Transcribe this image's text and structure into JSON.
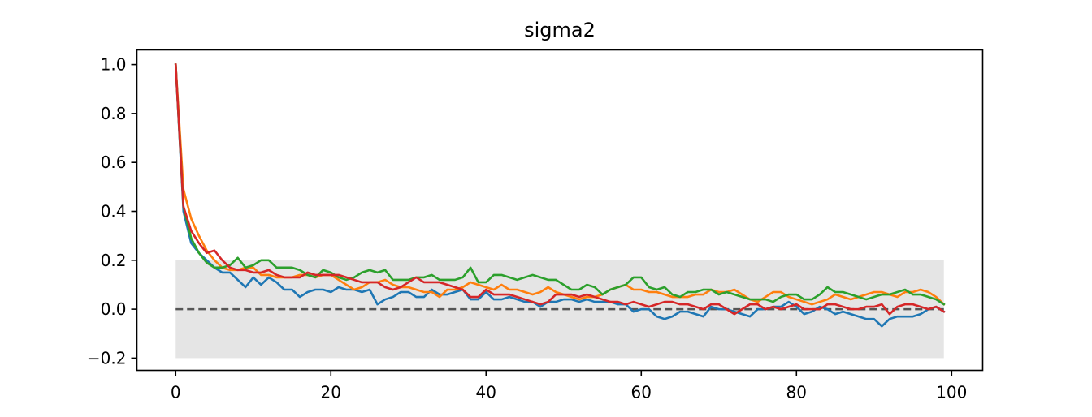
{
  "chart_data": {
    "type": "line",
    "title": "sigma2",
    "xlabel": "",
    "ylabel": "",
    "xlim": [
      -5,
      104
    ],
    "ylim": [
      -0.25,
      1.06
    ],
    "x_ticks": [
      0,
      20,
      40,
      60,
      80,
      100
    ],
    "x_tick_labels": [
      "0",
      "20",
      "40",
      "60",
      "80",
      "100"
    ],
    "y_ticks": [
      -0.2,
      0.0,
      0.2,
      0.4,
      0.6,
      0.8,
      1.0
    ],
    "y_tick_labels": [
      "−0.2",
      "0.0",
      "0.2",
      "0.4",
      "0.6",
      "0.8",
      "1.0"
    ],
    "grid": false,
    "band": {
      "x_start": 0,
      "x_end": 99,
      "y_low": -0.2,
      "y_high": 0.2,
      "color": "#e5e5e5"
    },
    "reference_line": {
      "y": 0.0,
      "style": "dashed",
      "color": "#555555"
    },
    "x": [
      0,
      1,
      2,
      3,
      4,
      5,
      6,
      7,
      8,
      9,
      10,
      11,
      12,
      13,
      14,
      15,
      16,
      17,
      18,
      19,
      20,
      21,
      22,
      23,
      24,
      25,
      26,
      27,
      28,
      29,
      30,
      31,
      32,
      33,
      34,
      35,
      36,
      37,
      38,
      39,
      40,
      41,
      42,
      43,
      44,
      45,
      46,
      47,
      48,
      49,
      50,
      51,
      52,
      53,
      54,
      55,
      56,
      57,
      58,
      59,
      60,
      61,
      62,
      63,
      64,
      65,
      66,
      67,
      68,
      69,
      70,
      71,
      72,
      73,
      74,
      75,
      76,
      77,
      78,
      79,
      80,
      81,
      82,
      83,
      84,
      85,
      86,
      87,
      88,
      89,
      90,
      91,
      92,
      93,
      94,
      95,
      96,
      97,
      98,
      99
    ],
    "series": [
      {
        "color": "#1f77b4",
        "values": [
          1.0,
          0.4,
          0.27,
          0.23,
          0.2,
          0.17,
          0.15,
          0.15,
          0.12,
          0.09,
          0.13,
          0.1,
          0.13,
          0.11,
          0.08,
          0.08,
          0.05,
          0.07,
          0.08,
          0.08,
          0.07,
          0.09,
          0.08,
          0.08,
          0.07,
          0.08,
          0.02,
          0.04,
          0.05,
          0.07,
          0.07,
          0.05,
          0.05,
          0.08,
          0.06,
          0.06,
          0.07,
          0.08,
          0.04,
          0.04,
          0.07,
          0.04,
          0.04,
          0.05,
          0.04,
          0.03,
          0.03,
          0.01,
          0.03,
          0.03,
          0.04,
          0.04,
          0.03,
          0.04,
          0.03,
          0.03,
          0.03,
          0.02,
          0.02,
          -0.01,
          0.0,
          0.0,
          -0.03,
          -0.04,
          -0.03,
          -0.01,
          -0.01,
          -0.02,
          -0.03,
          0.01,
          0.0,
          0.0,
          -0.01,
          -0.02,
          -0.03,
          0.0,
          0.0,
          0.01,
          0.01,
          0.03,
          0.01,
          -0.02,
          -0.01,
          0.01,
          0.0,
          -0.02,
          -0.01,
          -0.02,
          -0.03,
          -0.04,
          -0.04,
          -0.07,
          -0.04,
          -0.03,
          -0.03,
          -0.03,
          -0.02,
          0.0,
          0.01,
          -0.01
        ]
      },
      {
        "color": "#ff7f0e",
        "values": [
          1.0,
          0.49,
          0.37,
          0.3,
          0.24,
          0.2,
          0.17,
          0.16,
          0.16,
          0.17,
          0.17,
          0.14,
          0.14,
          0.13,
          0.13,
          0.13,
          0.14,
          0.14,
          0.13,
          0.14,
          0.14,
          0.12,
          0.1,
          0.08,
          0.09,
          0.11,
          0.11,
          0.12,
          0.1,
          0.09,
          0.09,
          0.08,
          0.07,
          0.07,
          0.05,
          0.08,
          0.08,
          0.09,
          0.11,
          0.1,
          0.09,
          0.08,
          0.1,
          0.08,
          0.08,
          0.07,
          0.06,
          0.07,
          0.09,
          0.07,
          0.06,
          0.05,
          0.04,
          0.05,
          0.05,
          0.06,
          0.08,
          0.09,
          0.1,
          0.08,
          0.08,
          0.07,
          0.07,
          0.06,
          0.05,
          0.05,
          0.05,
          0.06,
          0.06,
          0.08,
          0.07,
          0.07,
          0.08,
          0.06,
          0.04,
          0.03,
          0.05,
          0.07,
          0.07,
          0.05,
          0.04,
          0.03,
          0.02,
          0.03,
          0.04,
          0.06,
          0.05,
          0.04,
          0.05,
          0.06,
          0.07,
          0.07,
          0.06,
          0.05,
          0.07,
          0.07,
          0.08,
          0.07,
          0.05,
          0.02
        ]
      },
      {
        "color": "#2ca02c",
        "values": [
          1.0,
          0.42,
          0.29,
          0.23,
          0.19,
          0.17,
          0.17,
          0.18,
          0.21,
          0.17,
          0.18,
          0.2,
          0.2,
          0.17,
          0.17,
          0.17,
          0.16,
          0.14,
          0.13,
          0.16,
          0.15,
          0.13,
          0.12,
          0.13,
          0.15,
          0.16,
          0.15,
          0.16,
          0.12,
          0.12,
          0.12,
          0.13,
          0.13,
          0.14,
          0.12,
          0.12,
          0.12,
          0.13,
          0.17,
          0.11,
          0.11,
          0.14,
          0.14,
          0.13,
          0.12,
          0.13,
          0.14,
          0.13,
          0.12,
          0.12,
          0.1,
          0.08,
          0.08,
          0.1,
          0.09,
          0.06,
          0.08,
          0.09,
          0.1,
          0.13,
          0.13,
          0.09,
          0.08,
          0.09,
          0.06,
          0.05,
          0.07,
          0.07,
          0.08,
          0.08,
          0.06,
          0.07,
          0.06,
          0.05,
          0.04,
          0.04,
          0.04,
          0.03,
          0.05,
          0.06,
          0.06,
          0.04,
          0.04,
          0.06,
          0.09,
          0.07,
          0.07,
          0.06,
          0.05,
          0.04,
          0.05,
          0.06,
          0.06,
          0.07,
          0.08,
          0.06,
          0.06,
          0.05,
          0.04,
          0.02
        ]
      },
      {
        "color": "#d62728",
        "values": [
          1.0,
          0.42,
          0.32,
          0.27,
          0.23,
          0.24,
          0.2,
          0.17,
          0.16,
          0.16,
          0.15,
          0.15,
          0.16,
          0.14,
          0.13,
          0.13,
          0.13,
          0.15,
          0.14,
          0.14,
          0.14,
          0.14,
          0.13,
          0.12,
          0.11,
          0.11,
          0.11,
          0.09,
          0.08,
          0.09,
          0.11,
          0.13,
          0.11,
          0.11,
          0.11,
          0.1,
          0.09,
          0.08,
          0.05,
          0.05,
          0.08,
          0.06,
          0.06,
          0.06,
          0.05,
          0.04,
          0.03,
          0.02,
          0.03,
          0.06,
          0.06,
          0.06,
          0.05,
          0.06,
          0.05,
          0.04,
          0.03,
          0.03,
          0.02,
          0.03,
          0.02,
          0.01,
          0.02,
          0.03,
          0.03,
          0.02,
          0.02,
          0.01,
          0.0,
          0.02,
          0.02,
          0.0,
          -0.02,
          0.0,
          0.02,
          0.02,
          0.0,
          0.01,
          0.0,
          0.01,
          0.02,
          0.0,
          0.0,
          0.0,
          0.02,
          0.02,
          0.01,
          0.0,
          0.0,
          0.01,
          0.01,
          0.02,
          -0.02,
          0.01,
          0.02,
          0.02,
          0.01,
          0.0,
          0.01,
          -0.01
        ]
      }
    ]
  }
}
